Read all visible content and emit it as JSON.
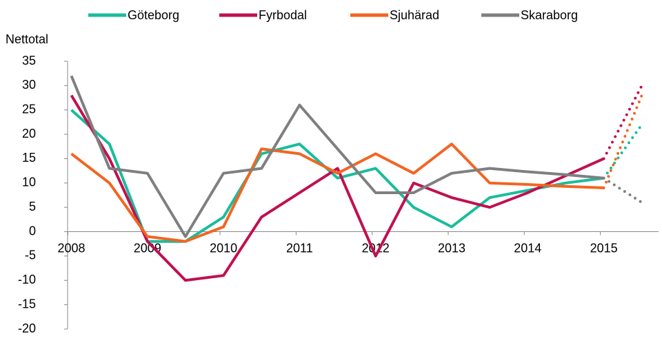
{
  "chart_data": {
    "type": "line",
    "y_label": "Nettotal",
    "x": [
      2008,
      2008.5,
      2009,
      2009.5,
      2010,
      2010.5,
      2011,
      2011.5,
      2012,
      2012.5,
      2013,
      2013.5,
      2014,
      2014.5,
      2015,
      2015.5
    ],
    "forecast_start": 2015,
    "series": [
      {
        "name": "Göteborg",
        "color": "#1abc9c",
        "values": [
          25,
          18,
          -2,
          -2,
          3,
          16,
          18,
          11,
          13,
          5,
          1,
          7,
          8.5,
          10,
          11,
          22
        ]
      },
      {
        "name": "Fyrbodal",
        "color": "#c0104f",
        "values": [
          28,
          15,
          -2,
          -10,
          -9,
          3,
          8,
          13,
          -5,
          10,
          7,
          5,
          8,
          11.5,
          15,
          30
        ]
      },
      {
        "name": "Sjuhärad",
        "color": "#f26522",
        "values": [
          16,
          10,
          -1,
          -2,
          1,
          17,
          16,
          12,
          16,
          12,
          18,
          10,
          9.7,
          9.3,
          9,
          28
        ]
      },
      {
        "name": "Skaraborg",
        "color": "#7f7f7f",
        "values": [
          32,
          13,
          12,
          -1,
          12,
          13,
          26,
          17,
          8,
          8,
          12,
          13,
          12.3,
          11.7,
          11,
          6
        ]
      }
    ],
    "xlim": [
      2007.95,
      2015.72
    ],
    "xticks": [
      2008,
      2009,
      2010,
      2011,
      2012,
      2013,
      2014,
      2015
    ],
    "ylim": [
      -20,
      35
    ],
    "yticks": [
      -20,
      -15,
      -10,
      -5,
      0,
      5,
      10,
      15,
      20,
      25,
      30,
      35
    ],
    "legend": "top"
  }
}
